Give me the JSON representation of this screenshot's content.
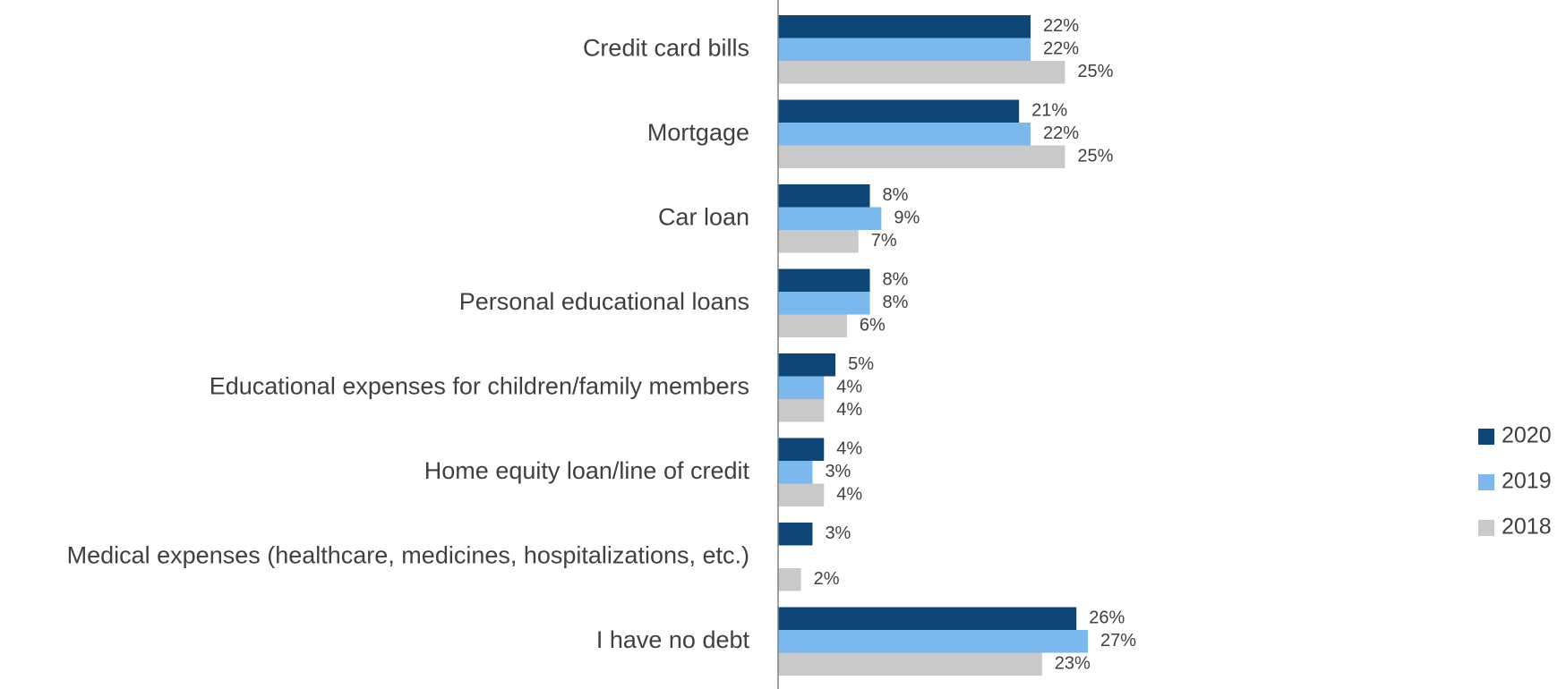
{
  "chart_data": {
    "type": "hbar",
    "categories": [
      "Credit card bills",
      "Mortgage",
      "Car loan",
      "Personal educational loans",
      "Educational expenses for children/family members",
      "Home equity loan/line of credit",
      "Medical expenses (healthcare, medicines, hospitalizations, etc.)",
      "I have no debt"
    ],
    "series": [
      {
        "name": "2020",
        "color": "#0e4677",
        "values": [
          22,
          21,
          8,
          8,
          5,
          4,
          3,
          26
        ],
        "value_labels": [
          "22%",
          "21%",
          "8%",
          "8%",
          "5%",
          "4%",
          "3%",
          "26%"
        ]
      },
      {
        "name": "2019",
        "color": "#7ab8ee",
        "values": [
          22,
          22,
          9,
          8,
          4,
          3,
          null,
          27
        ],
        "value_labels": [
          "22%",
          "22%",
          "9%",
          "8%",
          "4%",
          "3%",
          null,
          "27%"
        ]
      },
      {
        "name": "2018",
        "color": "#c9c9c9",
        "values": [
          25,
          25,
          7,
          6,
          4,
          4,
          2,
          23
        ],
        "value_labels": [
          "25%",
          "25%",
          "7%",
          "6%",
          "4%",
          "4%",
          "2%",
          "23%"
        ]
      }
    ],
    "xlim": [
      0,
      60
    ],
    "legend": "right"
  }
}
